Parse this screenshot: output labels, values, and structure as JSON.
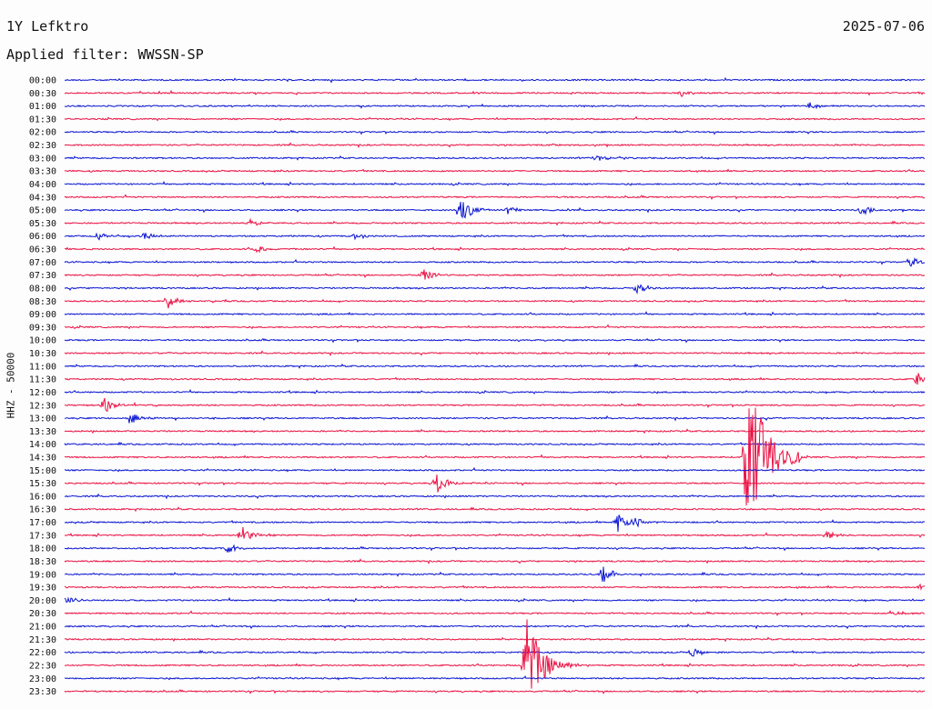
{
  "header": {
    "station": "1Y Lefktro",
    "date": "2025-07-06",
    "filter": "Applied filter: WWSSN-SP"
  },
  "channel_label": "HHZ - 50000",
  "colors": {
    "trace_even": "#0a14d2",
    "trace_odd": "#ec1144",
    "background": "#fdfdfd"
  },
  "chart_data": {
    "type": "line",
    "title": "1Y Lefktro",
    "subtitle": "Applied filter: WWSSN-SP",
    "date": "2025-07-06",
    "ylabel": "HHZ - 50000",
    "xlabel": "",
    "row_labels": [
      "00:00",
      "00:30",
      "01:00",
      "01:30",
      "02:00",
      "02:30",
      "03:00",
      "03:30",
      "04:00",
      "04:30",
      "05:00",
      "05:30",
      "06:00",
      "06:30",
      "07:00",
      "07:30",
      "08:00",
      "08:30",
      "09:00",
      "09:30",
      "10:00",
      "10:30",
      "11:00",
      "11:30",
      "12:00",
      "12:30",
      "13:00",
      "13:30",
      "14:00",
      "14:30",
      "15:00",
      "15:30",
      "16:00",
      "16:30",
      "17:00",
      "17:30",
      "18:00",
      "18:30",
      "19:00",
      "19:30",
      "20:00",
      "20:30",
      "21:00",
      "21:30",
      "22:00",
      "22:30",
      "23:00",
      "23:30"
    ],
    "row_minutes": 30,
    "grid": false,
    "events": [
      {
        "row": 1,
        "minute": 21.5,
        "amp": 0.25
      },
      {
        "row": 2,
        "minute": 26.0,
        "amp": 0.3
      },
      {
        "row": 5,
        "minute": 17.0,
        "amp": 0.15
      },
      {
        "row": 6,
        "minute": 18.5,
        "amp": 0.3
      },
      {
        "row": 10,
        "minute": 13.8,
        "amp": 1.2
      },
      {
        "row": 10,
        "minute": 15.5,
        "amp": 0.4
      },
      {
        "row": 10,
        "minute": 27.8,
        "amp": 0.4
      },
      {
        "row": 11,
        "minute": 6.5,
        "amp": 0.3
      },
      {
        "row": 12,
        "minute": 1.2,
        "amp": 0.3
      },
      {
        "row": 12,
        "minute": 2.8,
        "amp": 0.3
      },
      {
        "row": 12,
        "minute": 10.2,
        "amp": 0.3
      },
      {
        "row": 13,
        "minute": 6.7,
        "amp": 0.3
      },
      {
        "row": 14,
        "minute": 29.5,
        "amp": 0.4
      },
      {
        "row": 15,
        "minute": 12.5,
        "amp": 0.6
      },
      {
        "row": 16,
        "minute": 20.0,
        "amp": 0.5
      },
      {
        "row": 17,
        "minute": 3.6,
        "amp": 0.6
      },
      {
        "row": 23,
        "minute": 29.8,
        "amp": 0.8
      },
      {
        "row": 25,
        "minute": 1.4,
        "amp": 0.6
      },
      {
        "row": 26,
        "minute": 2.3,
        "amp": 0.5
      },
      {
        "row": 29,
        "minute": 23.8,
        "amp": 6.5
      },
      {
        "row": 31,
        "minute": 13.0,
        "amp": 0.9
      },
      {
        "row": 34,
        "minute": 19.3,
        "amp": 0.7
      },
      {
        "row": 34,
        "minute": 19.9,
        "amp": 0.5
      },
      {
        "row": 35,
        "minute": 6.2,
        "amp": 0.7
      },
      {
        "row": 35,
        "minute": 26.6,
        "amp": 0.4
      },
      {
        "row": 36,
        "minute": 5.7,
        "amp": 0.4
      },
      {
        "row": 38,
        "minute": 18.8,
        "amp": 0.7
      },
      {
        "row": 39,
        "minute": 29.8,
        "amp": 0.4
      },
      {
        "row": 40,
        "minute": 0.1,
        "amp": 0.4
      },
      {
        "row": 41,
        "minute": 28.9,
        "amp": 0.3
      },
      {
        "row": 44,
        "minute": 21.9,
        "amp": 0.4
      },
      {
        "row": 45,
        "minute": 16.1,
        "amp": 3.8
      }
    ]
  }
}
